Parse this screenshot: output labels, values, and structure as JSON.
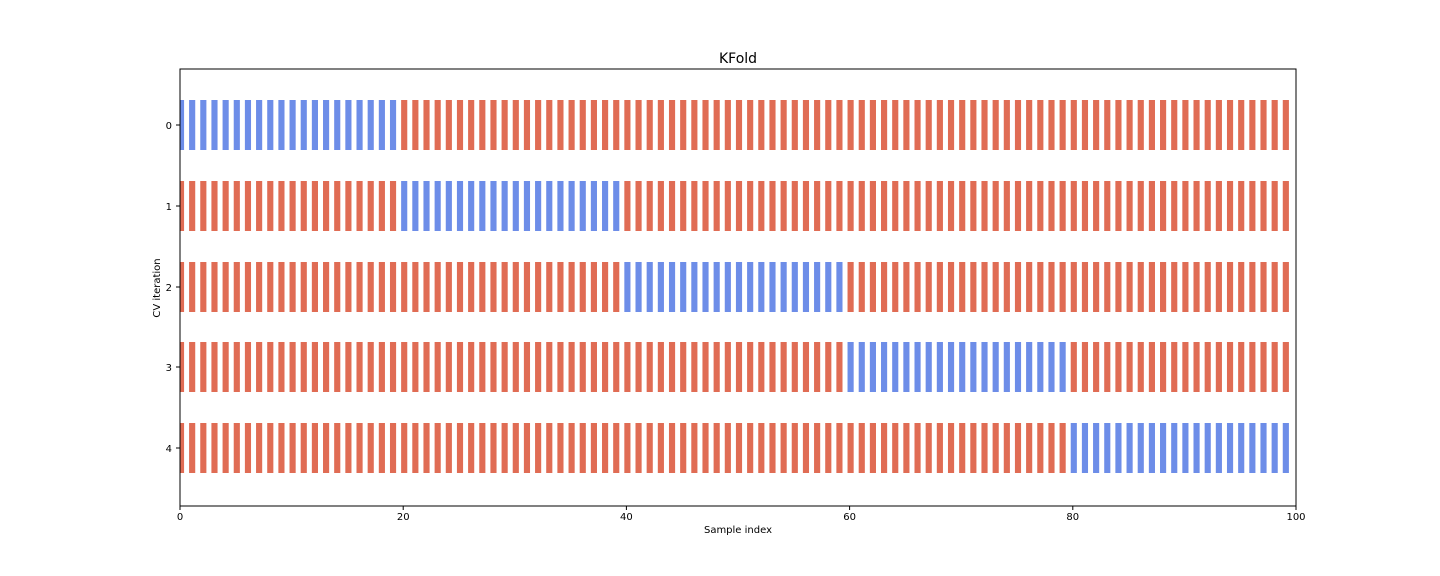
{
  "chart_data": {
    "type": "bar",
    "orientation": "horizontal",
    "title": "KFold",
    "xlabel": "Sample index",
    "ylabel": "CV iteration",
    "xlim": [
      0,
      100
    ],
    "n_samples": 100,
    "xticks": [
      0,
      20,
      40,
      60,
      80,
      100
    ],
    "iterations": [
      0,
      1,
      2,
      3,
      4
    ],
    "y_tick_labels": [
      "0",
      "1",
      "2",
      "3",
      "4"
    ],
    "colors": {
      "test": "#6d8de8",
      "train": "#e06c54"
    },
    "series": [
      {
        "test_range": [
          0,
          19
        ]
      },
      {
        "test_range": [
          20,
          39
        ]
      },
      {
        "test_range": [
          40,
          59
        ]
      },
      {
        "test_range": [
          60,
          79
        ]
      },
      {
        "test_range": [
          80,
          99
        ]
      }
    ],
    "grid": false,
    "legend": "none"
  }
}
